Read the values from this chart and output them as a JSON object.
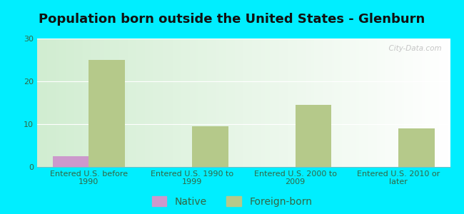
{
  "title": "Population born outside the United States - Glenburn",
  "categories": [
    "Entered U.S. before\n1990",
    "Entered U.S. 1990 to\n1999",
    "Entered U.S. 2000 to\n2009",
    "Entered U.S. 2010 or\nlater"
  ],
  "native_values": [
    2.5,
    0,
    0,
    0
  ],
  "foreign_values": [
    25,
    9.5,
    14.5,
    9
  ],
  "native_color": "#cc99cc",
  "foreign_color": "#b5c98a",
  "ylim": [
    0,
    30
  ],
  "yticks": [
    0,
    10,
    20,
    30
  ],
  "bar_width": 0.35,
  "bg_color": "#00eeff",
  "title_fontsize": 13,
  "tick_fontsize": 8,
  "legend_fontsize": 10,
  "watermark": "  City-Data.com"
}
